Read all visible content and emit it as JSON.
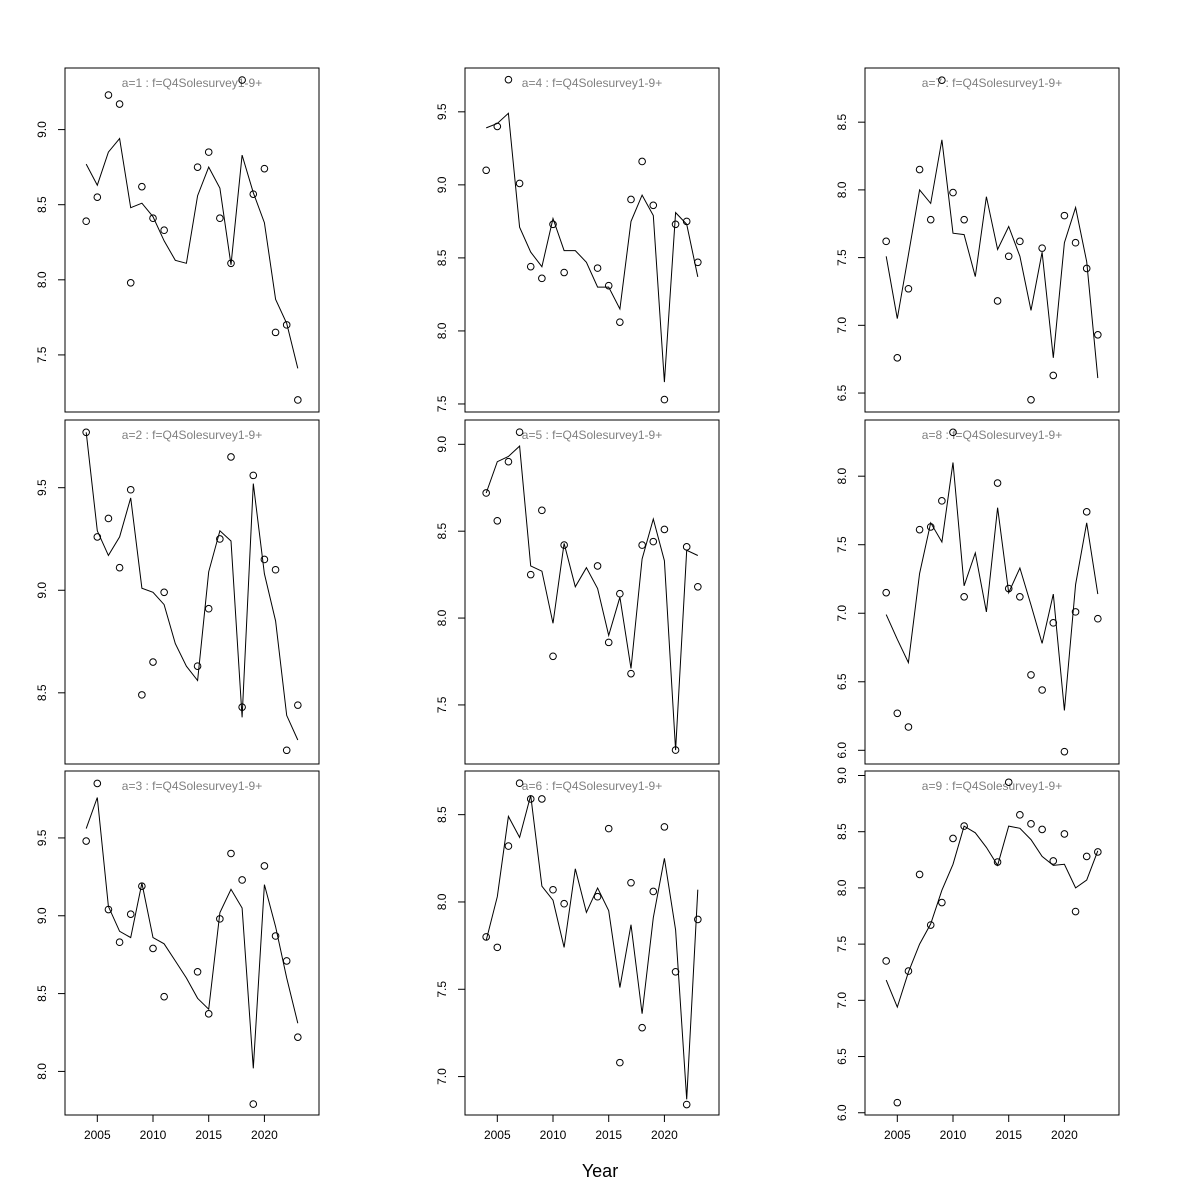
{
  "xlabel": "Year",
  "chart_data": [
    {
      "type": "line",
      "title": "a=1  :  f=Q4Solesurvey1-9+",
      "x": [
        2004,
        2005,
        2006,
        2007,
        2008,
        2009,
        2010,
        2011,
        2012,
        2013,
        2014,
        2015,
        2016,
        2017,
        2018,
        2019,
        2020,
        2021,
        2022,
        2023
      ],
      "xlim": [
        2002.1,
        2024.9
      ],
      "ylim": [
        7.12,
        9.41
      ],
      "yticks": [
        {
          "value": 7.5,
          "label": "7.5"
        },
        {
          "value": 8,
          "label": "8.0"
        },
        {
          "value": 8.5,
          "label": "8.5"
        },
        {
          "value": 9,
          "label": "9.0"
        }
      ],
      "series": [
        {
          "style": "points",
          "color": "#000000",
          "values": [
            8.39,
            8.55,
            9.23,
            9.17,
            7.98,
            8.62,
            8.41,
            8.33,
            null,
            null,
            8.75,
            8.85,
            8.41,
            8.11,
            9.33,
            8.57,
            8.74,
            7.65,
            7.7,
            7.2
          ]
        },
        {
          "style": "line",
          "color": "#000000",
          "values": [
            8.77,
            8.63,
            8.85,
            8.94,
            8.48,
            8.51,
            8.42,
            8.26,
            8.13,
            8.11,
            8.56,
            8.75,
            8.61,
            8.1,
            8.83,
            8.58,
            8.38,
            7.87,
            7.71,
            7.41
          ]
        }
      ]
    },
    {
      "type": "line",
      "title": "a=2  :  f=Q4Solesurvey1-9+",
      "x": [
        2004,
        2005,
        2006,
        2007,
        2008,
        2009,
        2010,
        2011,
        2012,
        2013,
        2014,
        2015,
        2016,
        2017,
        2018,
        2019,
        2020,
        2021,
        2022,
        2023
      ],
      "xlim": [
        2002.1,
        2024.9
      ],
      "ylim": [
        8.153,
        9.83
      ],
      "yticks": [
        {
          "value": 8.5,
          "label": "8.5"
        },
        {
          "value": 9,
          "label": "9.0"
        },
        {
          "value": 9.5,
          "label": "9.5"
        }
      ],
      "series": [
        {
          "style": "points",
          "color": "#000000",
          "values": [
            9.77,
            9.26,
            9.35,
            9.11,
            9.49,
            8.49,
            8.65,
            8.99,
            null,
            null,
            8.63,
            8.91,
            9.25,
            9.65,
            8.43,
            9.56,
            9.15,
            9.1,
            8.22,
            8.44
          ]
        },
        {
          "style": "line",
          "color": "#000000",
          "values": [
            9.77,
            9.29,
            9.17,
            9.26,
            9.45,
            9.01,
            8.99,
            8.93,
            8.74,
            8.63,
            8.56,
            9.09,
            9.29,
            9.24,
            8.38,
            9.52,
            9.08,
            8.85,
            8.39,
            8.27
          ]
        }
      ]
    },
    {
      "type": "line",
      "title": "a=3  :  f=Q4Solesurvey1-9+",
      "x": [
        2004,
        2005,
        2006,
        2007,
        2008,
        2009,
        2010,
        2011,
        2012,
        2013,
        2014,
        2015,
        2016,
        2017,
        2018,
        2019,
        2020,
        2021,
        2022,
        2023
      ],
      "xlim": [
        2002.1,
        2024.9
      ],
      "ylim": [
        7.72,
        9.93
      ],
      "xticks": [
        2005,
        2010,
        2015,
        2020
      ],
      "yticks": [
        {
          "value": 8,
          "label": "8.0"
        },
        {
          "value": 8.5,
          "label": "8.5"
        },
        {
          "value": 9,
          "label": "9.0"
        },
        {
          "value": 9.5,
          "label": "9.5"
        }
      ],
      "series": [
        {
          "style": "points",
          "color": "#000000",
          "values": [
            9.48,
            9.85,
            9.04,
            8.83,
            9.01,
            9.19,
            8.79,
            8.48,
            null,
            null,
            8.64,
            8.37,
            8.98,
            9.4,
            9.23,
            7.79,
            9.32,
            8.87,
            8.71,
            8.22
          ]
        },
        {
          "style": "line",
          "color": "#000000",
          "values": [
            9.56,
            9.76,
            9.06,
            8.9,
            8.86,
            9.21,
            8.86,
            8.82,
            8.71,
            8.6,
            8.47,
            8.4,
            9.02,
            9.17,
            9.05,
            8.02,
            9.2,
            8.93,
            8.6,
            8.31
          ]
        }
      ]
    },
    {
      "type": "line",
      "title": "a=4  :  f=Q4Solesurvey1-9+",
      "x": [
        2004,
        2005,
        2006,
        2007,
        2008,
        2009,
        2010,
        2011,
        2012,
        2013,
        2014,
        2015,
        2016,
        2017,
        2018,
        2019,
        2020,
        2021,
        2022,
        2023
      ],
      "xlim": [
        2002.1,
        2024.9
      ],
      "ylim": [
        7.445,
        9.8
      ],
      "yticks": [
        {
          "value": 7.5,
          "label": "7.5"
        },
        {
          "value": 8,
          "label": "8.0"
        },
        {
          "value": 8.5,
          "label": "8.5"
        },
        {
          "value": 9,
          "label": "9.0"
        },
        {
          "value": 9.5,
          "label": "9.5"
        }
      ],
      "series": [
        {
          "style": "points",
          "color": "#000000",
          "values": [
            9.1,
            9.4,
            9.72,
            9.01,
            8.44,
            8.36,
            8.73,
            8.4,
            null,
            null,
            8.43,
            8.31,
            8.06,
            8.9,
            9.16,
            8.86,
            7.53,
            8.73,
            8.75,
            8.47
          ]
        },
        {
          "style": "line",
          "color": "#000000",
          "values": [
            9.39,
            9.42,
            9.49,
            8.71,
            8.54,
            8.44,
            8.77,
            8.55,
            8.55,
            8.47,
            8.3,
            8.3,
            8.15,
            8.75,
            8.93,
            8.79,
            7.65,
            8.81,
            8.73,
            8.37
          ]
        }
      ]
    },
    {
      "type": "line",
      "title": "a=5  :  f=Q4Solesurvey1-9+",
      "x": [
        2004,
        2005,
        2006,
        2007,
        2008,
        2009,
        2010,
        2011,
        2012,
        2013,
        2014,
        2015,
        2016,
        2017,
        2018,
        2019,
        2020,
        2021,
        2022,
        2023
      ],
      "xlim": [
        2002.1,
        2024.9
      ],
      "ylim": [
        7.16,
        9.14
      ],
      "yticks": [
        {
          "value": 7.5,
          "label": "7.5"
        },
        {
          "value": 8,
          "label": "8.0"
        },
        {
          "value": 8.5,
          "label": "8.5"
        },
        {
          "value": 9,
          "label": "9.0"
        }
      ],
      "series": [
        {
          "style": "points",
          "color": "#000000",
          "values": [
            8.72,
            8.56,
            8.9,
            9.07,
            8.25,
            8.62,
            7.78,
            8.42,
            null,
            null,
            8.3,
            7.86,
            8.14,
            7.68,
            8.42,
            8.44,
            8.51,
            7.24,
            8.41,
            8.18
          ]
        },
        {
          "style": "line",
          "color": "#000000",
          "values": [
            8.72,
            8.9,
            8.93,
            8.99,
            8.3,
            8.27,
            7.97,
            8.43,
            8.18,
            8.29,
            8.17,
            7.9,
            8.12,
            7.71,
            8.34,
            8.57,
            8.33,
            7.24,
            8.39,
            8.36
          ]
        }
      ]
    },
    {
      "type": "line",
      "title": "a=6  :  f=Q4Solesurvey1-9+",
      "x": [
        2004,
        2005,
        2006,
        2007,
        2008,
        2009,
        2010,
        2011,
        2012,
        2013,
        2014,
        2015,
        2016,
        2017,
        2018,
        2019,
        2020,
        2021,
        2022,
        2023
      ],
      "xlim": [
        2002.1,
        2024.9
      ],
      "ylim": [
        6.78,
        8.75
      ],
      "xticks": [
        2005,
        2010,
        2015,
        2020
      ],
      "yticks": [
        {
          "value": 7,
          "label": "7.0"
        },
        {
          "value": 7.5,
          "label": "7.5"
        },
        {
          "value": 8,
          "label": "8.0"
        },
        {
          "value": 8.5,
          "label": "8.5"
        }
      ],
      "series": [
        {
          "style": "points",
          "color": "#000000",
          "values": [
            7.8,
            7.74,
            8.32,
            8.68,
            8.59,
            8.59,
            8.07,
            7.99,
            null,
            null,
            8.03,
            8.42,
            7.08,
            8.11,
            7.28,
            8.06,
            8.43,
            7.6,
            6.84,
            7.9
          ]
        },
        {
          "style": "line",
          "color": "#000000",
          "values": [
            7.78,
            8.03,
            8.49,
            8.37,
            8.61,
            8.09,
            8.01,
            7.74,
            8.19,
            7.94,
            8.08,
            7.95,
            7.51,
            7.87,
            7.36,
            7.91,
            8.25,
            7.84,
            6.87,
            8.07
          ]
        }
      ]
    },
    {
      "type": "line",
      "title": "a=7  :  f=Q4Solesurvey1-9+",
      "x": [
        2004,
        2005,
        2006,
        2007,
        2008,
        2009,
        2010,
        2011,
        2012,
        2013,
        2014,
        2015,
        2016,
        2017,
        2018,
        2019,
        2020,
        2021,
        2022,
        2023
      ],
      "xlim": [
        2002.1,
        2024.9
      ],
      "ylim": [
        6.36,
        8.9
      ],
      "yticks": [
        {
          "value": 6.5,
          "label": "6.5"
        },
        {
          "value": 7,
          "label": "7.0"
        },
        {
          "value": 7.5,
          "label": "7.5"
        },
        {
          "value": 8,
          "label": "8.0"
        },
        {
          "value": 8.5,
          "label": "8.5"
        }
      ],
      "series": [
        {
          "style": "points",
          "color": "#000000",
          "values": [
            7.62,
            6.76,
            7.27,
            8.15,
            7.78,
            8.81,
            7.98,
            7.78,
            null,
            null,
            7.18,
            7.51,
            7.62,
            6.45,
            7.57,
            6.63,
            7.81,
            7.61,
            7.42,
            6.93
          ]
        },
        {
          "style": "line",
          "color": "#000000",
          "values": [
            7.51,
            7.05,
            7.52,
            8.0,
            7.9,
            8.37,
            7.68,
            7.67,
            7.36,
            7.95,
            7.56,
            7.73,
            7.51,
            7.11,
            7.54,
            6.76,
            7.61,
            7.87,
            7.47,
            6.61
          ]
        }
      ]
    },
    {
      "type": "line",
      "title": "a=8  :  f=Q4Solesurvey1-9+",
      "x": [
        2004,
        2005,
        2006,
        2007,
        2008,
        2009,
        2010,
        2011,
        2012,
        2013,
        2014,
        2015,
        2016,
        2017,
        2018,
        2019,
        2020,
        2021,
        2022,
        2023
      ],
      "xlim": [
        2002.1,
        2024.9
      ],
      "ylim": [
        5.9,
        8.41
      ],
      "yticks": [
        {
          "value": 6,
          "label": "6.0"
        },
        {
          "value": 6.5,
          "label": "6.5"
        },
        {
          "value": 7,
          "label": "7.0"
        },
        {
          "value": 7.5,
          "label": "7.5"
        },
        {
          "value": 8,
          "label": "8.0"
        }
      ],
      "series": [
        {
          "style": "points",
          "color": "#000000",
          "values": [
            7.15,
            6.27,
            6.17,
            7.61,
            7.63,
            7.82,
            8.32,
            7.12,
            null,
            null,
            7.95,
            7.18,
            7.12,
            6.55,
            6.44,
            6.93,
            5.99,
            7.01,
            7.74,
            6.96
          ]
        },
        {
          "style": "line",
          "color": "#000000",
          "values": [
            6.99,
            6.81,
            6.64,
            7.29,
            7.66,
            7.52,
            8.1,
            7.2,
            7.44,
            7.01,
            7.77,
            7.15,
            7.33,
            7.06,
            6.78,
            7.14,
            6.29,
            7.21,
            7.66,
            7.14
          ]
        }
      ]
    },
    {
      "type": "line",
      "title": "a=9  :  f=Q4Solesurvey1-9+",
      "x": [
        2004,
        2005,
        2006,
        2007,
        2008,
        2009,
        2010,
        2011,
        2012,
        2013,
        2014,
        2015,
        2016,
        2017,
        2018,
        2019,
        2020,
        2021,
        2022,
        2023
      ],
      "xlim": [
        2002.1,
        2024.9
      ],
      "ylim": [
        5.98,
        9.04
      ],
      "xticks": [
        2005,
        2010,
        2015,
        2020
      ],
      "yticks": [
        {
          "value": 6,
          "label": "6.0"
        },
        {
          "value": 6.5,
          "label": "6.5"
        },
        {
          "value": 7,
          "label": "7.0"
        },
        {
          "value": 7.5,
          "label": "7.5"
        },
        {
          "value": 8,
          "label": "8.0"
        },
        {
          "value": 8.5,
          "label": "8.5"
        },
        {
          "value": 9,
          "label": "9.0"
        }
      ],
      "series": [
        {
          "style": "points",
          "color": "#000000",
          "values": [
            7.35,
            6.09,
            7.26,
            8.12,
            7.67,
            7.87,
            8.44,
            8.55,
            null,
            null,
            8.23,
            8.94,
            8.65,
            8.57,
            8.52,
            8.24,
            8.48,
            7.79,
            8.28,
            8.32
          ]
        },
        {
          "style": "line",
          "color": "#000000",
          "values": [
            7.18,
            6.94,
            7.25,
            7.5,
            7.68,
            7.98,
            8.21,
            8.55,
            8.49,
            8.36,
            8.2,
            8.55,
            8.53,
            8.43,
            8.28,
            8.2,
            8.21,
            8.0,
            8.07,
            8.33
          ]
        }
      ]
    }
  ]
}
